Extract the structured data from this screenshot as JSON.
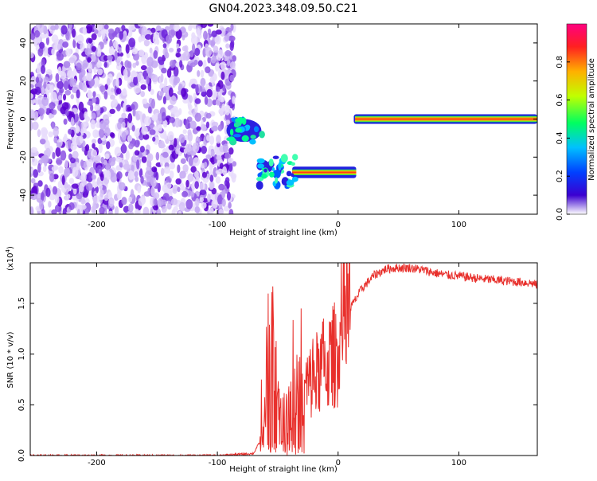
{
  "title": "GN04.2023.348.09.50.C21",
  "chart_data": [
    {
      "type": "heatmap",
      "xlabel": "Height of straight line (km)",
      "ylabel": "Frequency (Hz)",
      "xlim": [
        -255,
        165
      ],
      "ylim": [
        -50,
        50
      ],
      "xticks": [
        -200,
        -100,
        0,
        100
      ],
      "yticks": [
        -40,
        -20,
        0,
        20,
        40
      ],
      "colorbar": {
        "label": "Normalized spectral amplitude",
        "range": [
          0,
          1
        ],
        "ticks": [
          "0.0",
          "0.2",
          "0.4",
          "0.6",
          "0.8"
        ],
        "colors": [
          "#ffffff",
          "#3b00d0",
          "#0040ff",
          "#00c0ff",
          "#00ff60",
          "#c0ff00",
          "#ffb000",
          "#ff2020",
          "#ff0080"
        ]
      },
      "regions": [
        {
          "x": [
            -255,
            -86
          ],
          "freq": [
            -50,
            50
          ],
          "pattern": "noise",
          "amplitude": 0.1
        },
        {
          "x": [
            -92,
            -63
          ],
          "freq": [
            -12,
            0
          ],
          "pattern": "patch",
          "amplitude": 0.5
        },
        {
          "x": [
            -65,
            15
          ],
          "freq": [
            -36,
            -20
          ],
          "pattern": "signal",
          "center_freq": -28,
          "amplitude": 0.9
        },
        {
          "x": [
            13,
            165
          ],
          "freq": [
            -2,
            2
          ],
          "pattern": "signal",
          "center_freq": 0,
          "amplitude": 0.95
        }
      ]
    },
    {
      "type": "line",
      "xlabel": "Height of straight line (km)",
      "ylabel": "SNR (10 * v/v)",
      "y_multiplier": "(x10",
      "y_multiplier_exp": "4",
      "xlim": [
        -255,
        165
      ],
      "ylim": [
        0,
        1.9
      ],
      "xticks": [
        -200,
        -100,
        0,
        100
      ],
      "yticks": [
        "0.0",
        "0.5",
        "1.0",
        "1.5"
      ],
      "series": [
        {
          "color": "#e8302c",
          "x": [
            -255,
            -200,
            -150,
            -100,
            -70,
            -62,
            -58,
            -55,
            -50,
            -45,
            -40,
            -35,
            -30,
            -25,
            -20,
            -15,
            -10,
            -5,
            0,
            5,
            10,
            20,
            30,
            40,
            50,
            60,
            70,
            80,
            90,
            100,
            120,
            140,
            160,
            165
          ],
          "y": [
            0.0,
            0.0,
            0.0,
            0.0,
            0.02,
            0.2,
            0.8,
            1.2,
            0.6,
            0.4,
            0.5,
            0.7,
            0.6,
            0.7,
            0.75,
            0.85,
            0.9,
            0.95,
            1.05,
            1.3,
            1.45,
            1.65,
            1.78,
            1.84,
            1.85,
            1.85,
            1.83,
            1.8,
            1.78,
            1.77,
            1.74,
            1.72,
            1.7,
            1.68
          ]
        }
      ]
    }
  ]
}
